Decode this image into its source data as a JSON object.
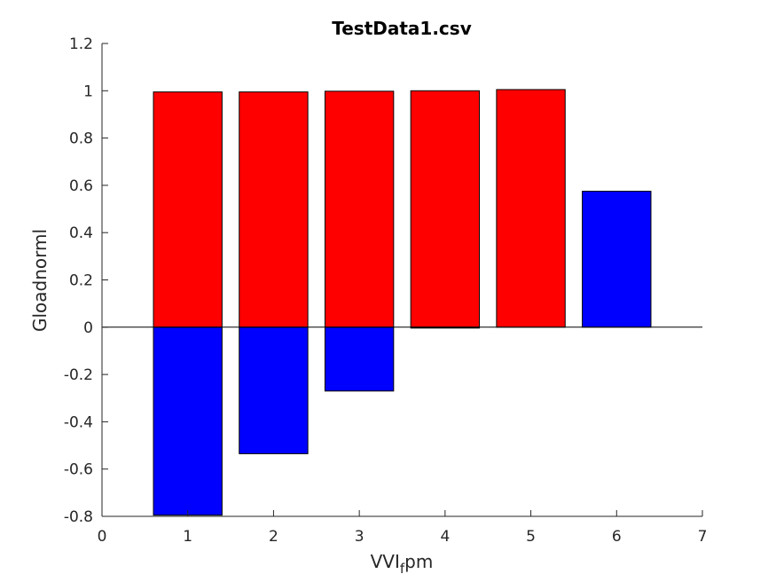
{
  "chart_data": {
    "type": "bar",
    "title": "TestData1.csv",
    "xlabel": {
      "main": "VVI",
      "sub": "f",
      "suffix": "pm"
    },
    "ylabel": "Gloadnorml",
    "xlim": [
      0,
      7
    ],
    "ylim": [
      -0.8,
      1.2
    ],
    "xticks": [
      0,
      1,
      2,
      3,
      4,
      5,
      6,
      7
    ],
    "yticks": [
      -0.8,
      -0.6,
      -0.4,
      -0.2,
      0,
      0.2,
      0.4,
      0.6,
      0.8,
      1,
      1.2
    ],
    "ytick_labels": [
      "-0.8",
      "-0.6",
      "-0.4",
      "-0.2",
      "0",
      "0.2",
      "0.4",
      "0.6",
      "0.8",
      "1",
      "1.2"
    ],
    "bar_width": 0.8,
    "grid": false,
    "series": [
      {
        "color": "#ff0000",
        "x": [
          1,
          2,
          3,
          4,
          5
        ],
        "values": [
          0.995,
          0.995,
          0.998,
          1.0,
          1.005
        ]
      },
      {
        "color": "#0000ff",
        "x": [
          1,
          2,
          3,
          4,
          6
        ],
        "values": [
          -0.795,
          -0.535,
          -0.27,
          -0.003,
          0.575
        ]
      }
    ]
  }
}
